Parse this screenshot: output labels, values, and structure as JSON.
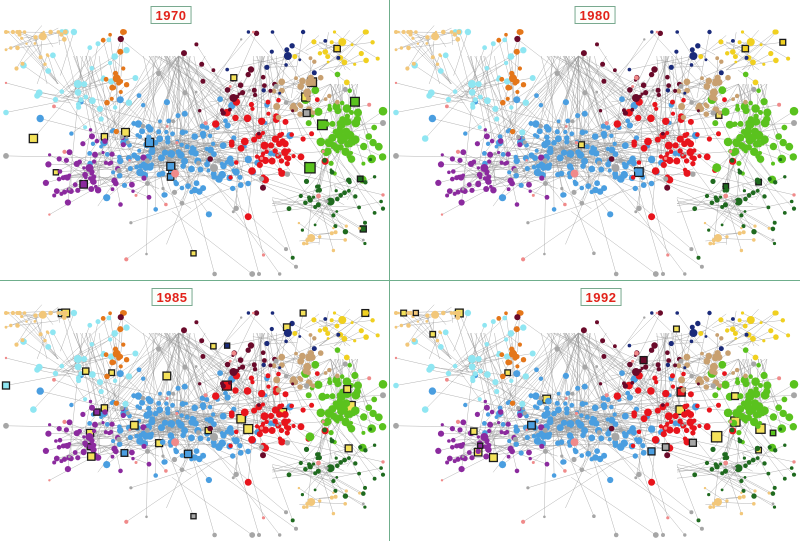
{
  "figure": {
    "panels": [
      {
        "year": "1970",
        "highlight_density": 1.0
      },
      {
        "year": "1980",
        "highlight_density": 0.55
      },
      {
        "year": "1985",
        "highlight_density": 1.25
      },
      {
        "year": "1992",
        "highlight_density": 1.45
      }
    ],
    "colors": {
      "edge": "#9a9a9a",
      "divider": "#6fae8c",
      "label_text": "#e2231a",
      "label_border": "#79a98f",
      "highlight_border": "#1a1a1a",
      "highlight_fill": "#f4e25a"
    },
    "clusters": [
      {
        "name": "blue",
        "color": "#4a9ee0"
      },
      {
        "name": "purple",
        "color": "#8b2a9e"
      },
      {
        "name": "red",
        "color": "#e8141c"
      },
      {
        "name": "green",
        "color": "#5ac21e"
      },
      {
        "name": "dark-green",
        "color": "#1f6a1f"
      },
      {
        "name": "cyan",
        "color": "#8fe6f2"
      },
      {
        "name": "tan",
        "color": "#f2c77a"
      },
      {
        "name": "orange",
        "color": "#e4761a"
      },
      {
        "name": "brown-tan",
        "color": "#c8a070"
      },
      {
        "name": "maroon",
        "color": "#6a0a2a"
      },
      {
        "name": "yellow",
        "color": "#f0d020"
      },
      {
        "name": "navy",
        "color": "#1a2a7a"
      },
      {
        "name": "gray",
        "color": "#a6a6a6"
      },
      {
        "name": "pink",
        "color": "#f08a8a"
      }
    ]
  }
}
